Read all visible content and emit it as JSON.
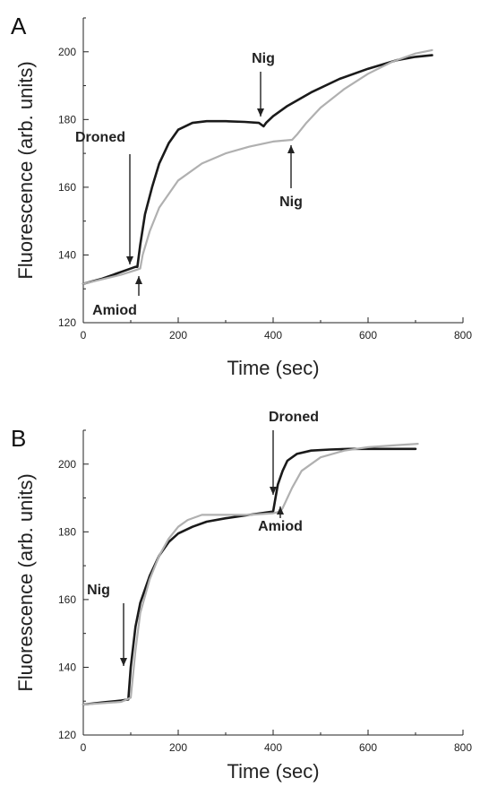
{
  "chart_data": [
    {
      "type": "line",
      "panel_label": "A",
      "xlabel": "Time (sec)",
      "ylabel": "Fluorescence (arb. units)",
      "xlim": [
        0,
        800
      ],
      "ylim": [
        120,
        210
      ],
      "xticks": [
        0,
        200,
        400,
        600,
        800
      ],
      "yticks": [
        120,
        140,
        160,
        180,
        200
      ],
      "grid": false,
      "series": [
        {
          "color": "#1a1a1a",
          "x": [
            0,
            40,
            80,
            110,
            114,
            120,
            130,
            145,
            160,
            180,
            200,
            230,
            260,
            300,
            340,
            370,
            380,
            385,
            400,
            430,
            480,
            540,
            600,
            660,
            700,
            735
          ],
          "y": [
            131.5,
            133,
            135,
            136.5,
            136.5,
            143,
            152,
            160,
            167,
            173,
            177,
            179,
            179.5,
            179.5,
            179.3,
            179,
            178,
            179,
            181,
            184,
            188,
            192,
            195,
            197.5,
            198.5,
            199
          ]
        },
        {
          "color": "#b0b0b0",
          "x": [
            0,
            40,
            80,
            110,
            120,
            125,
            140,
            160,
            200,
            250,
            300,
            350,
            400,
            440,
            450,
            470,
            500,
            550,
            600,
            650,
            700,
            735
          ],
          "y": [
            131.5,
            132.8,
            134.2,
            135.5,
            136,
            140,
            147,
            154,
            162,
            167,
            170,
            172,
            173.5,
            174,
            175.5,
            179,
            183.5,
            189,
            193.5,
            197,
            199.5,
            200.5
          ]
        }
      ],
      "annotations": [
        {
          "text": "Droned",
          "x": 112,
          "y": 137
        },
        {
          "text": "Nig",
          "x": 380,
          "y": 178
        },
        {
          "text": "Amiod",
          "x": 120,
          "y": 136
        },
        {
          "text": "Nig",
          "x": 440,
          "y": 174
        }
      ]
    },
    {
      "type": "line",
      "panel_label": "B",
      "xlabel": "Time (sec)",
      "ylabel": "Fluorescence (arb. units)",
      "xlim": [
        0,
        800
      ],
      "ylim": [
        120,
        210
      ],
      "xticks": [
        0,
        200,
        400,
        600,
        800
      ],
      "yticks": [
        120,
        140,
        160,
        180,
        200
      ],
      "grid": false,
      "series": [
        {
          "color": "#1a1a1a",
          "x": [
            0,
            40,
            80,
            95,
            100,
            110,
            120,
            140,
            160,
            180,
            200,
            230,
            260,
            300,
            350,
            390,
            400,
            405,
            410,
            420,
            430,
            450,
            480,
            520,
            560,
            600,
            650,
            700
          ],
          "y": [
            129,
            129.6,
            130.2,
            130.5,
            140,
            152,
            159,
            167,
            173,
            177,
            179.5,
            181.5,
            183,
            184,
            185,
            185.8,
            186,
            190,
            194,
            198,
            201,
            203,
            204,
            204.3,
            204.5,
            204.5,
            204.5,
            204.5
          ]
        },
        {
          "color": "#b0b0b0",
          "x": [
            0,
            40,
            80,
            100,
            110,
            120,
            140,
            160,
            180,
            200,
            220,
            250,
            300,
            350,
            400,
            415,
            420,
            440,
            460,
            500,
            550,
            600,
            650,
            705
          ],
          "y": [
            129,
            129.4,
            129.8,
            131,
            145,
            156,
            166,
            173,
            178,
            181.5,
            183.5,
            185,
            185,
            185,
            185.5,
            186,
            187,
            193,
            198,
            202,
            204,
            205,
            205.5,
            206
          ]
        }
      ],
      "annotations": [
        {
          "text": "Nig",
          "x": 90,
          "y": 130
        },
        {
          "text": "Droned",
          "x": 400,
          "y": 186
        },
        {
          "text": "Amiod",
          "x": 415,
          "y": 185
        }
      ]
    }
  ]
}
